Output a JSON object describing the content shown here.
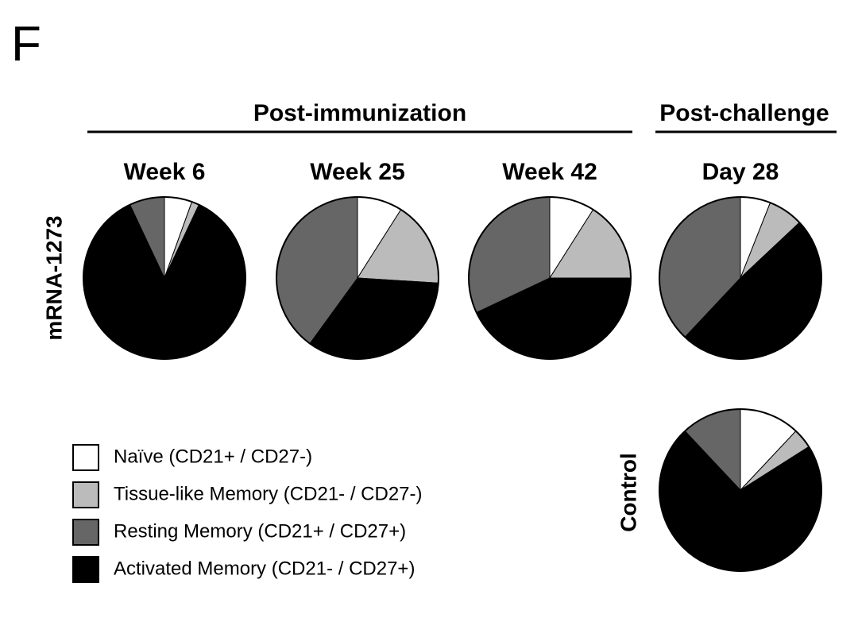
{
  "panel_label": "F",
  "group_headers": [
    "Post-immunization",
    "Post-challenge"
  ],
  "row_labels": [
    "mRNA-1273",
    "Control"
  ],
  "legend": {
    "labels": [
      "Naïve (CD21+ / CD27-)",
      "Tissue-like Memory (CD21- / CD27-)",
      "Resting Memory (CD21+ / CD27+)",
      "Activated Memory (CD21- / CD27+)"
    ],
    "colors": [
      "#ffffff",
      "#bbbbbb",
      "#666666",
      "#000000"
    ]
  },
  "chart_data": [
    {
      "type": "pie",
      "title": "Week 6",
      "values": [
        5.5,
        1.5,
        7,
        86
      ]
    },
    {
      "type": "pie",
      "title": "Week 25",
      "values": [
        9,
        17,
        40,
        34
      ]
    },
    {
      "type": "pie",
      "title": "Week 42",
      "values": [
        9,
        16,
        32,
        43
      ]
    },
    {
      "type": "pie",
      "title": "Day 28",
      "values": [
        6,
        7,
        38,
        49
      ]
    },
    {
      "type": "pie",
      "values": [
        12,
        4,
        12,
        72
      ]
    }
  ]
}
